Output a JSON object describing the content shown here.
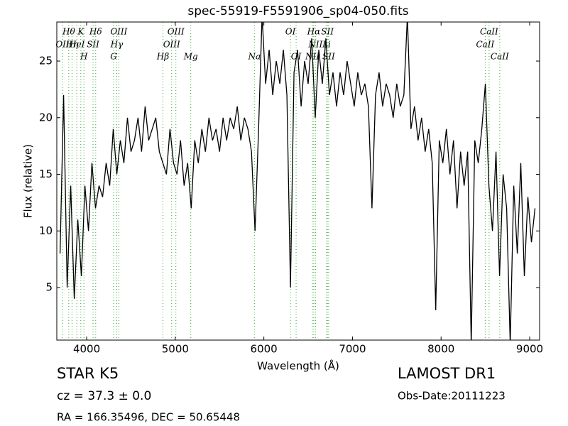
{
  "chart_data": {
    "type": "line",
    "title": "spec-55919-F5591906_sp04-050.fits",
    "x_label": "Wavelength (Å)",
    "y_label": "Flux (relative)",
    "xlim": [
      3663,
      9112
    ],
    "ylim": [
      0.36,
      28.45
    ],
    "xticks": [
      4000,
      5000,
      6000,
      7000,
      8000,
      9000
    ],
    "yticks": [
      5,
      10,
      15,
      20,
      25
    ],
    "color": "#000000",
    "line_color": "#33aa33",
    "x": [
      3700,
      3740,
      3780,
      3820,
      3860,
      3900,
      3940,
      3980,
      4020,
      4060,
      4100,
      4140,
      4180,
      4220,
      4260,
      4300,
      4340,
      4380,
      4420,
      4460,
      4500,
      4540,
      4580,
      4620,
      4660,
      4700,
      4740,
      4780,
      4820,
      4860,
      4900,
      4940,
      4980,
      5020,
      5060,
      5100,
      5140,
      5180,
      5220,
      5260,
      5300,
      5340,
      5380,
      5420,
      5460,
      5500,
      5540,
      5580,
      5620,
      5660,
      5700,
      5740,
      5780,
      5820,
      5860,
      5900,
      5940,
      5980,
      6020,
      6060,
      6100,
      6140,
      6180,
      6220,
      6260,
      6300,
      6340,
      6380,
      6420,
      6460,
      6500,
      6540,
      6580,
      6620,
      6660,
      6700,
      6740,
      6780,
      6820,
      6860,
      6900,
      6940,
      6980,
      7020,
      7060,
      7100,
      7140,
      7180,
      7220,
      7260,
      7300,
      7340,
      7380,
      7420,
      7460,
      7500,
      7540,
      7580,
      7620,
      7660,
      7700,
      7740,
      7780,
      7820,
      7860,
      7900,
      7940,
      7980,
      8020,
      8060,
      8100,
      8140,
      8180,
      8220,
      8260,
      8300,
      8340,
      8380,
      8420,
      8460,
      8500,
      8540,
      8580,
      8620,
      8660,
      8700,
      8740,
      8780,
      8820,
      8860,
      8900,
      8940,
      8980,
      9020,
      9060
    ],
    "values": [
      8,
      22,
      5,
      14,
      4,
      11,
      6,
      14,
      10,
      16,
      12,
      14,
      13,
      16,
      14,
      19,
      15,
      18,
      16,
      20,
      17,
      18,
      20,
      17,
      21,
      18,
      19,
      20,
      17,
      16,
      15,
      19,
      16,
      15,
      18,
      14,
      16,
      12,
      18,
      16,
      19,
      17,
      20,
      18,
      19,
      17,
      20,
      18,
      20,
      19,
      21,
      18,
      20,
      19,
      17,
      10,
      19,
      29,
      23,
      26,
      22,
      25,
      23,
      26,
      22,
      5,
      24,
      26,
      21,
      25,
      23,
      27,
      20,
      26,
      23,
      27,
      22,
      24,
      21,
      24,
      22,
      25,
      23,
      21,
      24,
      22,
      23,
      21,
      12,
      22,
      24,
      21,
      23,
      22,
      20,
      23,
      21,
      22,
      29,
      19,
      21,
      18,
      20,
      17,
      19,
      16,
      3,
      18,
      16,
      19,
      15,
      18,
      12,
      17,
      14,
      17,
      0,
      18,
      16,
      19,
      23,
      14,
      10,
      17,
      6,
      15,
      12,
      0,
      14,
      8,
      16,
      6,
      13,
      9,
      12
    ],
    "spectral_lines": [
      {
        "x": 3798,
        "label": "Hθ",
        "row": 0
      },
      {
        "x": 3934,
        "label": "K",
        "row": 0
      },
      {
        "x": 4102,
        "label": "Hδ",
        "row": 0
      },
      {
        "x": 4363,
        "label": "OIII",
        "row": 0
      },
      {
        "x": 5007,
        "label": "OIII",
        "row": 0
      },
      {
        "x": 6300,
        "label": "OI",
        "row": 0
      },
      {
        "x": 6563,
        "label": "Hα",
        "row": 0
      },
      {
        "x": 6717,
        "label": "SII",
        "row": 0
      },
      {
        "x": 8542,
        "label": "CaII",
        "row": 0
      },
      {
        "x": 3727,
        "label": "OII",
        "row": 1
      },
      {
        "x": 3835,
        "label": "Hη",
        "row": 1
      },
      {
        "x": 3889,
        "label": "HeI",
        "row": 1
      },
      {
        "x": 4072,
        "label": "SII",
        "row": 1
      },
      {
        "x": 4340,
        "label": "Hγ",
        "row": 1
      },
      {
        "x": 4959,
        "label": "OIII",
        "row": 1
      },
      {
        "x": 6583,
        "label": "NII",
        "row": 1
      },
      {
        "x": 6708,
        "label": "Li",
        "row": 1
      },
      {
        "x": 8498,
        "label": "CaII",
        "row": 1
      },
      {
        "x": 3969,
        "label": "H",
        "row": 2
      },
      {
        "x": 4304,
        "label": "G",
        "row": 2
      },
      {
        "x": 4861,
        "label": "Hβ",
        "row": 2
      },
      {
        "x": 5175,
        "label": "Mg",
        "row": 2
      },
      {
        "x": 5893,
        "label": "Na",
        "row": 2
      },
      {
        "x": 6364,
        "label": "OI",
        "row": 2
      },
      {
        "x": 6548,
        "label": "NII",
        "row": 2
      },
      {
        "x": 6731,
        "label": "SII",
        "row": 2
      },
      {
        "x": 8662,
        "label": "CaII",
        "row": 2
      }
    ],
    "object_class": "STAR   K5",
    "survey": "LAMOST DR1",
    "redshift": "cz = 37.3 ± 0.0",
    "obs_date": "Obs-Date:20111223",
    "coords": "RA = 166.35496, DEC = 50.65448"
  }
}
